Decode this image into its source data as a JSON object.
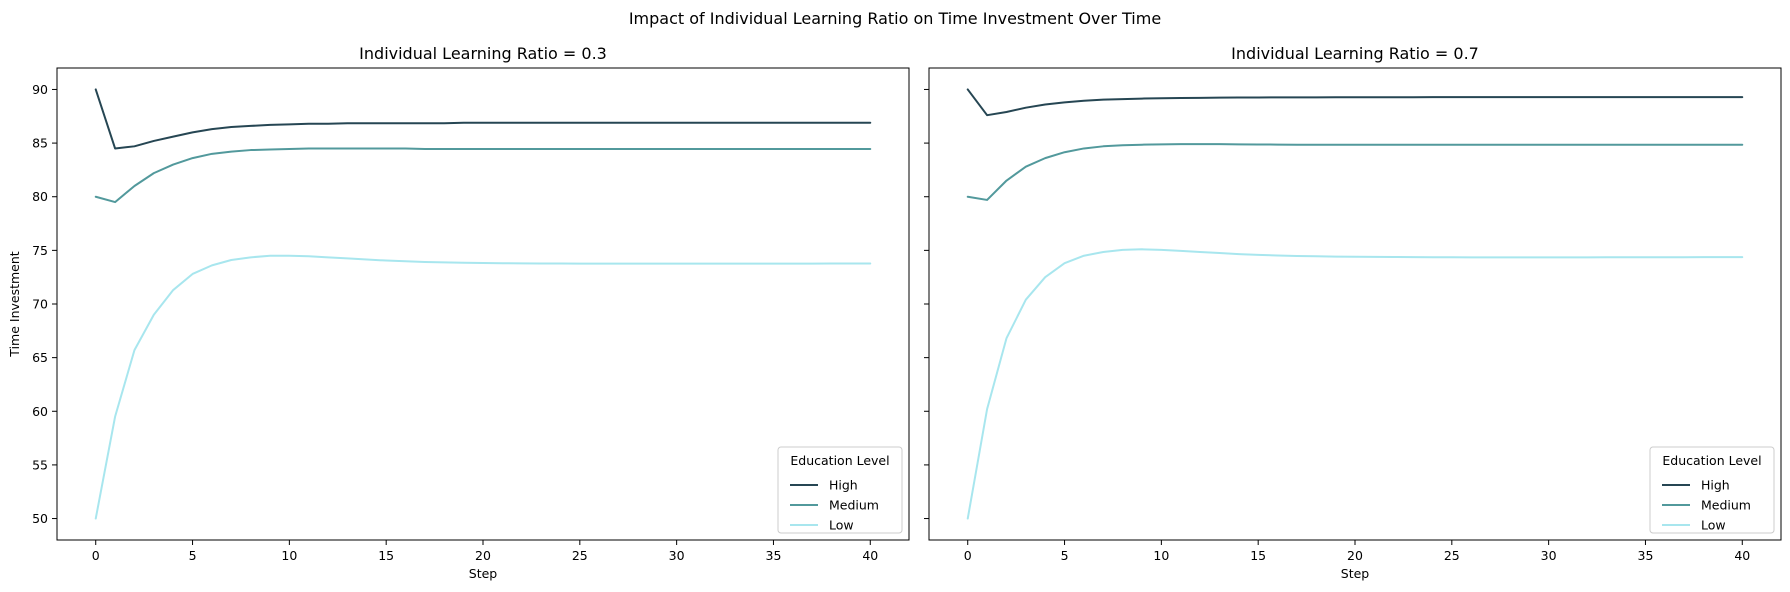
{
  "figure": {
    "suptitle": "Impact of Individual Learning Ratio on Time Investment Over Time"
  },
  "chart_data": [
    {
      "type": "line",
      "title": "Individual Learning Ratio = 0.3",
      "xlabel": "Step",
      "ylabel": "Time Investment",
      "xlim": [
        -2,
        42
      ],
      "ylim": [
        48,
        92
      ],
      "xticks": [
        0,
        5,
        10,
        15,
        20,
        25,
        30,
        35,
        40
      ],
      "yticks": [
        50,
        55,
        60,
        65,
        70,
        75,
        80,
        85,
        90
      ],
      "grid": false,
      "legend": {
        "title": "Education Level",
        "placement": "lower-right"
      },
      "x": [
        0,
        1,
        2,
        3,
        4,
        5,
        6,
        7,
        8,
        9,
        10,
        11,
        12,
        13,
        14,
        15,
        16,
        17,
        18,
        19,
        20,
        21,
        22,
        23,
        24,
        25,
        26,
        27,
        28,
        29,
        30,
        31,
        32,
        33,
        34,
        35,
        36,
        37,
        38,
        39,
        40
      ],
      "series": [
        {
          "name": "High",
          "color": "#264653",
          "values": [
            90,
            84.5,
            84.7,
            85.2,
            85.6,
            86,
            86.3,
            86.5,
            86.6,
            86.7,
            86.75,
            86.8,
            86.8,
            86.85,
            86.85,
            86.85,
            86.85,
            86.85,
            86.85,
            86.9,
            86.9,
            86.9,
            86.9,
            86.9,
            86.9,
            86.9,
            86.9,
            86.9,
            86.9,
            86.9,
            86.9,
            86.9,
            86.9,
            86.9,
            86.9,
            86.9,
            86.9,
            86.9,
            86.9,
            86.9,
            86.9
          ]
        },
        {
          "name": "Medium",
          "color": "#52999c",
          "values": [
            80,
            79.5,
            81,
            82.2,
            83,
            83.6,
            84,
            84.2,
            84.35,
            84.4,
            84.45,
            84.5,
            84.5,
            84.5,
            84.5,
            84.5,
            84.5,
            84.45,
            84.45,
            84.45,
            84.45,
            84.45,
            84.45,
            84.45,
            84.45,
            84.45,
            84.45,
            84.45,
            84.45,
            84.45,
            84.45,
            84.45,
            84.45,
            84.45,
            84.45,
            84.45,
            84.45,
            84.45,
            84.45,
            84.45,
            84.45
          ]
        },
        {
          "name": "Low",
          "color": "#a8e6ee",
          "values": [
            50,
            59.5,
            65.7,
            69,
            71.3,
            72.8,
            73.6,
            74.1,
            74.35,
            74.5,
            74.5,
            74.45,
            74.35,
            74.25,
            74.15,
            74.05,
            73.98,
            73.92,
            73.88,
            73.85,
            73.82,
            73.8,
            73.79,
            73.78,
            73.77,
            73.76,
            73.76,
            73.76,
            73.76,
            73.76,
            73.76,
            73.76,
            73.76,
            73.76,
            73.76,
            73.76,
            73.76,
            73.76,
            73.77,
            73.77,
            73.77
          ]
        }
      ]
    },
    {
      "type": "line",
      "title": "Individual Learning Ratio = 0.7",
      "xlabel": "Step",
      "ylabel": "",
      "xlim": [
        -2,
        42
      ],
      "ylim": [
        48,
        92
      ],
      "xticks": [
        0,
        5,
        10,
        15,
        20,
        25,
        30,
        35,
        40
      ],
      "yticks": [
        50,
        55,
        60,
        65,
        70,
        75,
        80,
        85,
        90
      ],
      "grid": false,
      "legend": {
        "title": "Education Level",
        "placement": "lower-right"
      },
      "x": [
        0,
        1,
        2,
        3,
        4,
        5,
        6,
        7,
        8,
        9,
        10,
        11,
        12,
        13,
        14,
        15,
        16,
        17,
        18,
        19,
        20,
        21,
        22,
        23,
        24,
        25,
        26,
        27,
        28,
        29,
        30,
        31,
        32,
        33,
        34,
        35,
        36,
        37,
        38,
        39,
        40
      ],
      "series": [
        {
          "name": "High",
          "color": "#264653",
          "values": [
            90,
            87.6,
            87.9,
            88.3,
            88.6,
            88.8,
            88.95,
            89.05,
            89.1,
            89.15,
            89.18,
            89.2,
            89.22,
            89.24,
            89.25,
            89.25,
            89.26,
            89.26,
            89.26,
            89.27,
            89.27,
            89.27,
            89.27,
            89.27,
            89.28,
            89.28,
            89.28,
            89.28,
            89.28,
            89.28,
            89.28,
            89.28,
            89.28,
            89.28,
            89.28,
            89.28,
            89.28,
            89.28,
            89.28,
            89.28,
            89.28
          ]
        },
        {
          "name": "Medium",
          "color": "#52999c",
          "values": [
            80,
            79.7,
            81.5,
            82.8,
            83.6,
            84.15,
            84.5,
            84.7,
            84.8,
            84.85,
            84.88,
            84.9,
            84.9,
            84.9,
            84.88,
            84.87,
            84.86,
            84.85,
            84.84,
            84.84,
            84.84,
            84.84,
            84.84,
            84.84,
            84.84,
            84.84,
            84.84,
            84.84,
            84.84,
            84.84,
            84.84,
            84.84,
            84.84,
            84.84,
            84.84,
            84.84,
            84.84,
            84.84,
            84.84,
            84.84,
            84.84
          ]
        },
        {
          "name": "Low",
          "color": "#a8e6ee",
          "values": [
            50,
            60.2,
            66.8,
            70.4,
            72.5,
            73.8,
            74.5,
            74.85,
            75.05,
            75.1,
            75.05,
            74.95,
            74.85,
            74.75,
            74.65,
            74.58,
            74.52,
            74.48,
            74.45,
            74.42,
            74.4,
            74.39,
            74.38,
            74.37,
            74.36,
            74.36,
            74.35,
            74.35,
            74.35,
            74.35,
            74.35,
            74.35,
            74.35,
            74.36,
            74.36,
            74.36,
            74.36,
            74.36,
            74.37,
            74.37,
            74.37
          ]
        }
      ]
    }
  ]
}
